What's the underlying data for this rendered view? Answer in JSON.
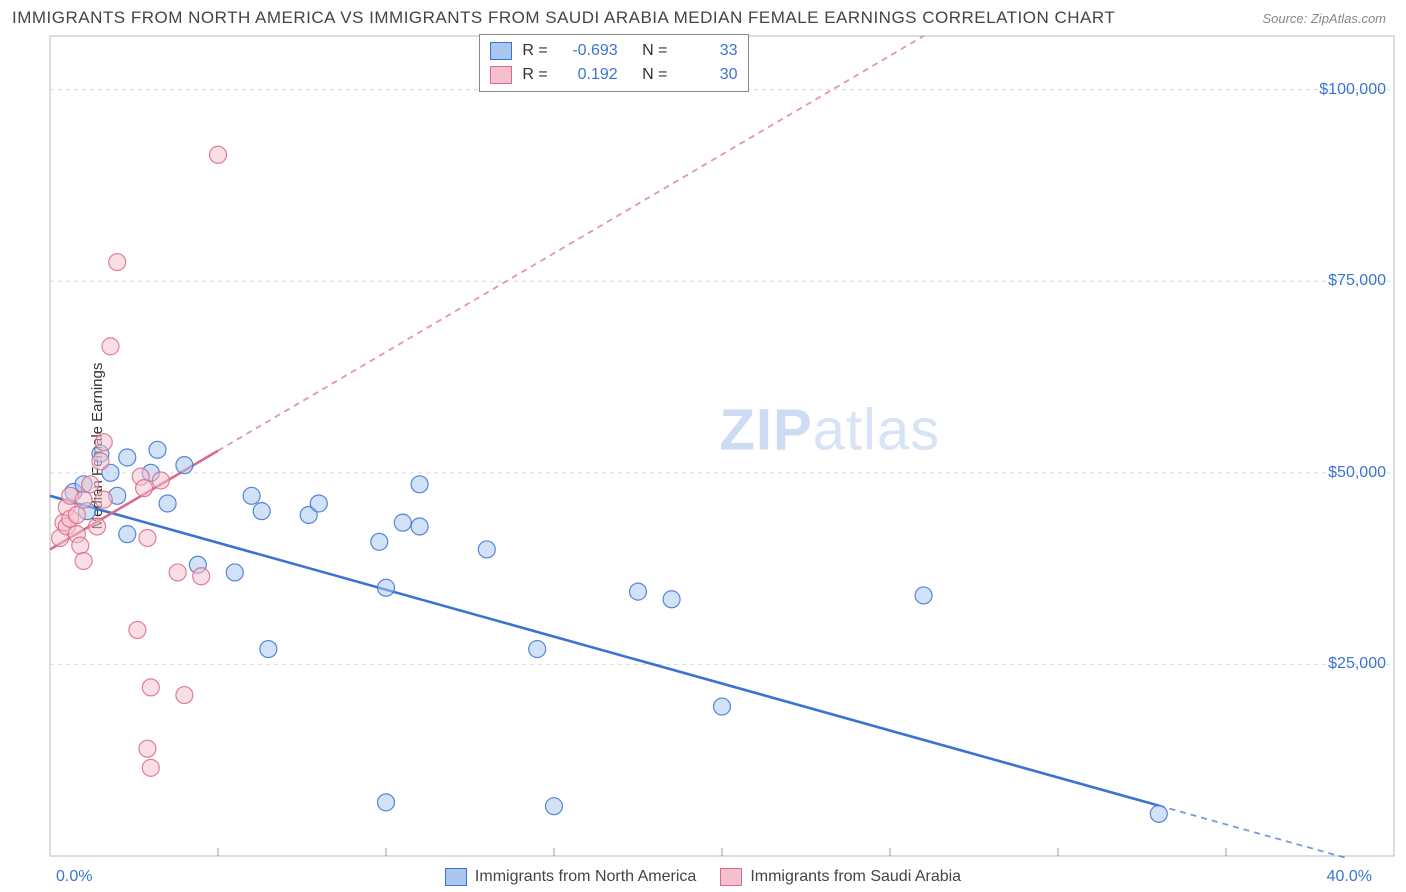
{
  "title": "IMMIGRANTS FROM NORTH AMERICA VS IMMIGRANTS FROM SAUDI ARABIA MEDIAN FEMALE EARNINGS CORRELATION CHART",
  "source": "Source: ZipAtlas.com",
  "watermark_prefix": "ZIP",
  "watermark_suffix": "atlas",
  "y_axis_label": "Median Female Earnings",
  "chart": {
    "type": "scatter",
    "background_color": "#ffffff",
    "grid_color": "#d9d9d9",
    "axis_color": "#999999",
    "plot_border_color": "#bbbbbb",
    "xlim": [
      0,
      40
    ],
    "ylim": [
      0,
      107000
    ],
    "x_min_label": "0.0%",
    "x_max_label": "40.0%",
    "x_ticks": [
      5,
      10,
      15,
      20,
      25,
      30,
      35
    ],
    "y_ticks": [
      {
        "v": 25000,
        "label": "$25,000"
      },
      {
        "v": 50000,
        "label": "$50,000"
      },
      {
        "v": 75000,
        "label": "$75,000"
      },
      {
        "v": 100000,
        "label": "$100,000"
      }
    ],
    "marker_radius": 8.5,
    "marker_stroke_width": 1.2,
    "marker_fill_opacity": 0.28,
    "trend_line_width": 2.6,
    "trend_dash": "6,5",
    "series": [
      {
        "name": "Immigrants from North America",
        "color": "#3b74d0",
        "fill": "#a9c6ee",
        "R": "-0.693",
        "N": "33",
        "trend": {
          "x1": 0,
          "y1": 47000,
          "x2": 40,
          "y2": -2000,
          "solid_until_x": 33
        },
        "points": [
          [
            0.7,
            47500
          ],
          [
            1.0,
            48500
          ],
          [
            1.1,
            45000
          ],
          [
            1.5,
            52500
          ],
          [
            1.8,
            50000
          ],
          [
            2.0,
            47000
          ],
          [
            2.3,
            52000
          ],
          [
            2.3,
            42000
          ],
          [
            3.0,
            50000
          ],
          [
            3.2,
            53000
          ],
          [
            3.5,
            46000
          ],
          [
            4.0,
            51000
          ],
          [
            4.4,
            38000
          ],
          [
            5.5,
            37000
          ],
          [
            6.0,
            47000
          ],
          [
            6.3,
            45000
          ],
          [
            6.5,
            27000
          ],
          [
            7.7,
            44500
          ],
          [
            8.0,
            46000
          ],
          [
            9.8,
            41000
          ],
          [
            10.0,
            7000
          ],
          [
            10.0,
            35000
          ],
          [
            10.5,
            43500
          ],
          [
            11.0,
            43000
          ],
          [
            11.0,
            48500
          ],
          [
            13.0,
            40000
          ],
          [
            14.5,
            27000
          ],
          [
            15.0,
            6500
          ],
          [
            17.5,
            34500
          ],
          [
            18.5,
            33500
          ],
          [
            20.0,
            19500
          ],
          [
            26.0,
            34000
          ],
          [
            33.0,
            5500
          ]
        ]
      },
      {
        "name": "Immigrants from Saudi Arabia",
        "color": "#d96b88",
        "fill": "#f4c0cd",
        "R": "0.192",
        "N": "30",
        "trend": {
          "x1": 0,
          "y1": 40000,
          "x2": 26,
          "y2": 107000,
          "solid_until_x": 5
        },
        "points": [
          [
            0.3,
            41500
          ],
          [
            0.4,
            43500
          ],
          [
            0.5,
            43000
          ],
          [
            0.5,
            45500
          ],
          [
            0.6,
            44000
          ],
          [
            0.6,
            47000
          ],
          [
            0.8,
            44500
          ],
          [
            0.8,
            42000
          ],
          [
            0.9,
            40500
          ],
          [
            1.0,
            46500
          ],
          [
            1.0,
            38500
          ],
          [
            1.2,
            48500
          ],
          [
            1.4,
            43000
          ],
          [
            1.5,
            51500
          ],
          [
            1.6,
            46500
          ],
          [
            1.6,
            54000
          ],
          [
            1.8,
            66500
          ],
          [
            2.0,
            77500
          ],
          [
            2.6,
            29500
          ],
          [
            2.7,
            49500
          ],
          [
            2.8,
            48000
          ],
          [
            2.9,
            41500
          ],
          [
            2.9,
            14000
          ],
          [
            3.0,
            22000
          ],
          [
            3.0,
            11500
          ],
          [
            3.3,
            49000
          ],
          [
            3.8,
            37000
          ],
          [
            4.0,
            21000
          ],
          [
            4.5,
            36500
          ],
          [
            5.0,
            91500
          ]
        ]
      }
    ]
  },
  "stats_box": {
    "label_R": "R =",
    "label_N": "N ="
  },
  "legend": {
    "series1": "Immigrants from North America",
    "series2": "Immigrants from Saudi Arabia"
  }
}
